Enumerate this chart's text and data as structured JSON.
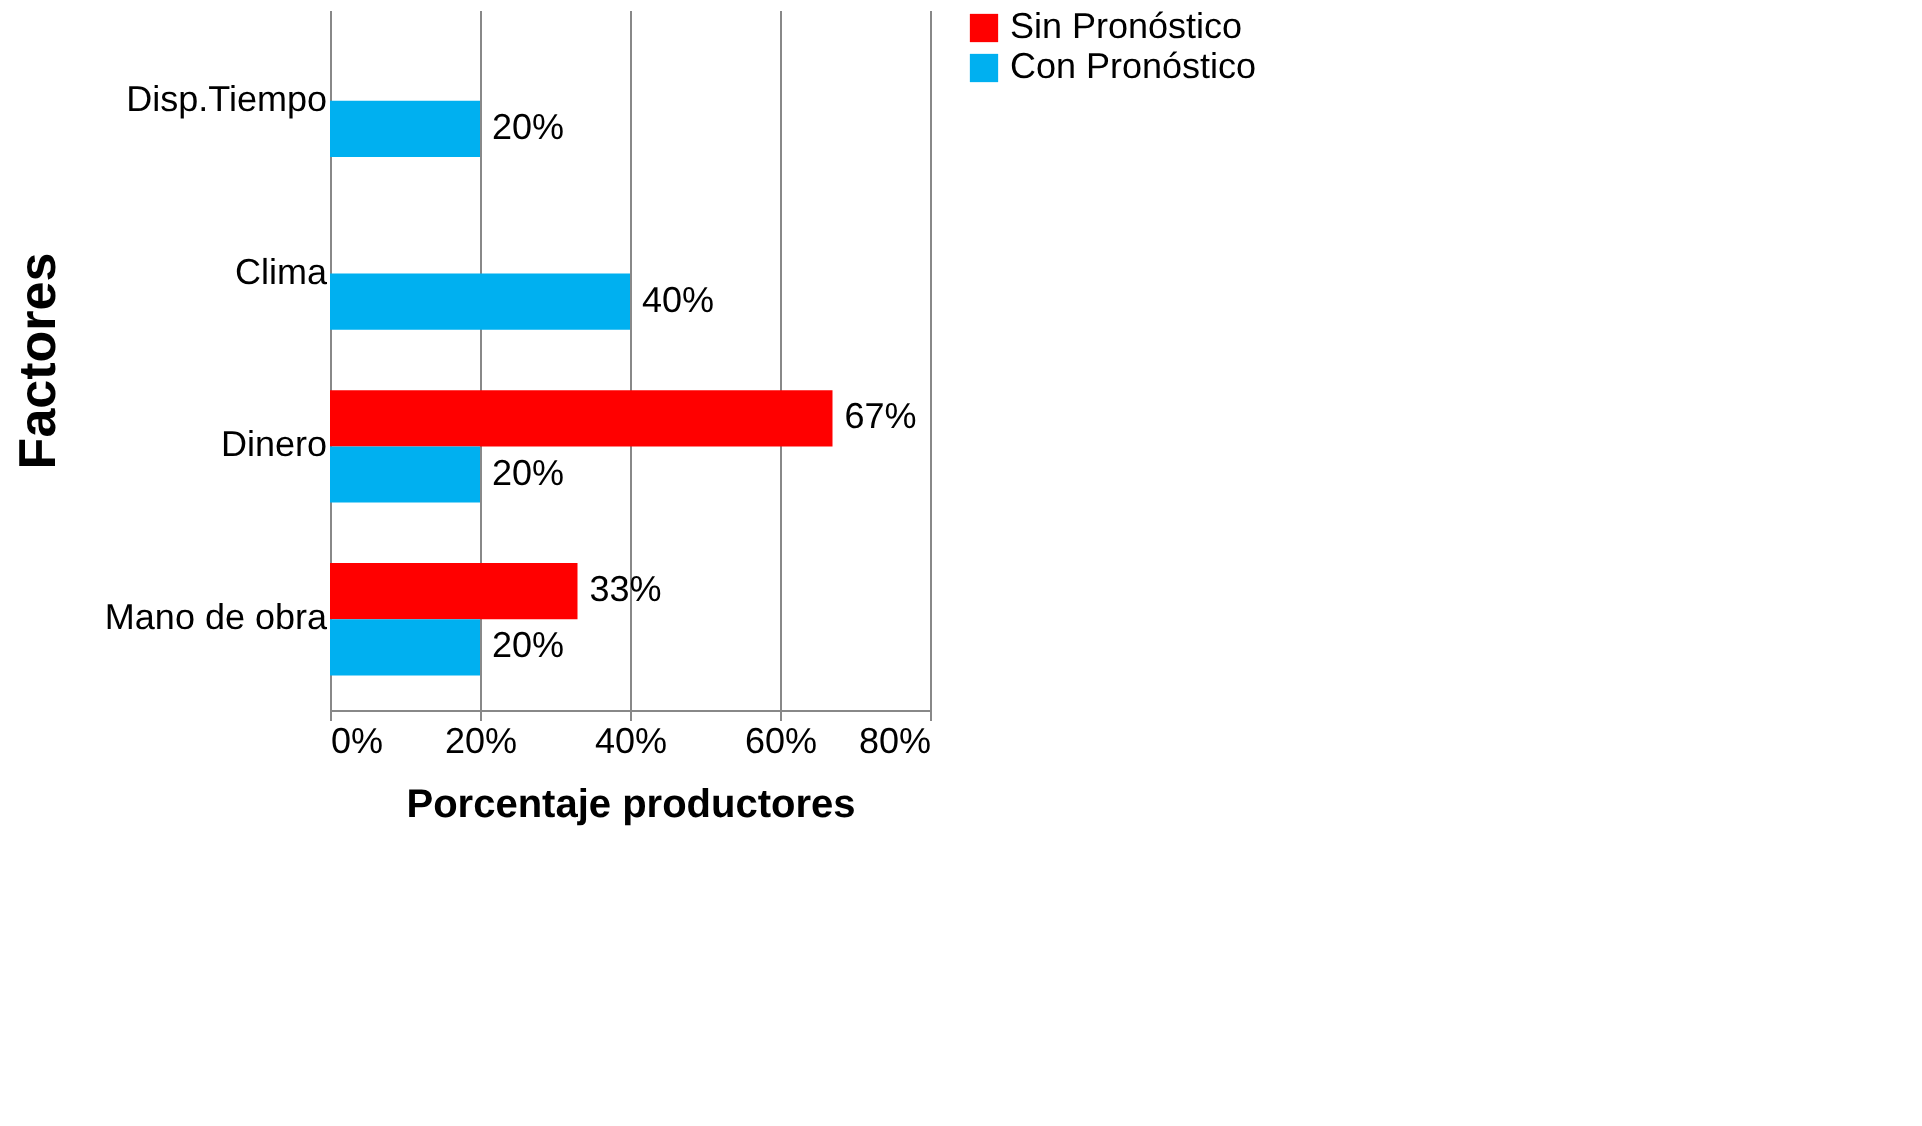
{
  "chart_data": {
    "type": "bar",
    "orientation": "horizontal",
    "xlabel": "Porcentaje productores",
    "ylabel": "Factores",
    "categories": [
      "Disp.Tiempo",
      "Clima",
      "Dinero",
      "Mano de obra"
    ],
    "series": [
      {
        "name": "Sin Pronóstico",
        "color": "#ff0000",
        "values": [
          null,
          null,
          67,
          33
        ],
        "value_labels": [
          null,
          null,
          "67%",
          "33%"
        ]
      },
      {
        "name": "Con Pronóstico",
        "color": "#00b0f0",
        "values": [
          20,
          40,
          20,
          20
        ],
        "value_labels": [
          "20%",
          "40%",
          "20%",
          "20%"
        ]
      }
    ],
    "xlim": [
      0,
      80
    ],
    "xticks": [
      {
        "value": 0,
        "label": "0%"
      },
      {
        "value": 20,
        "label": "20%"
      },
      {
        "value": 40,
        "label": "40%"
      },
      {
        "value": 60,
        "label": "60%"
      },
      {
        "value": 80,
        "label": "80%"
      }
    ],
    "grid": "x",
    "legend": "right"
  }
}
